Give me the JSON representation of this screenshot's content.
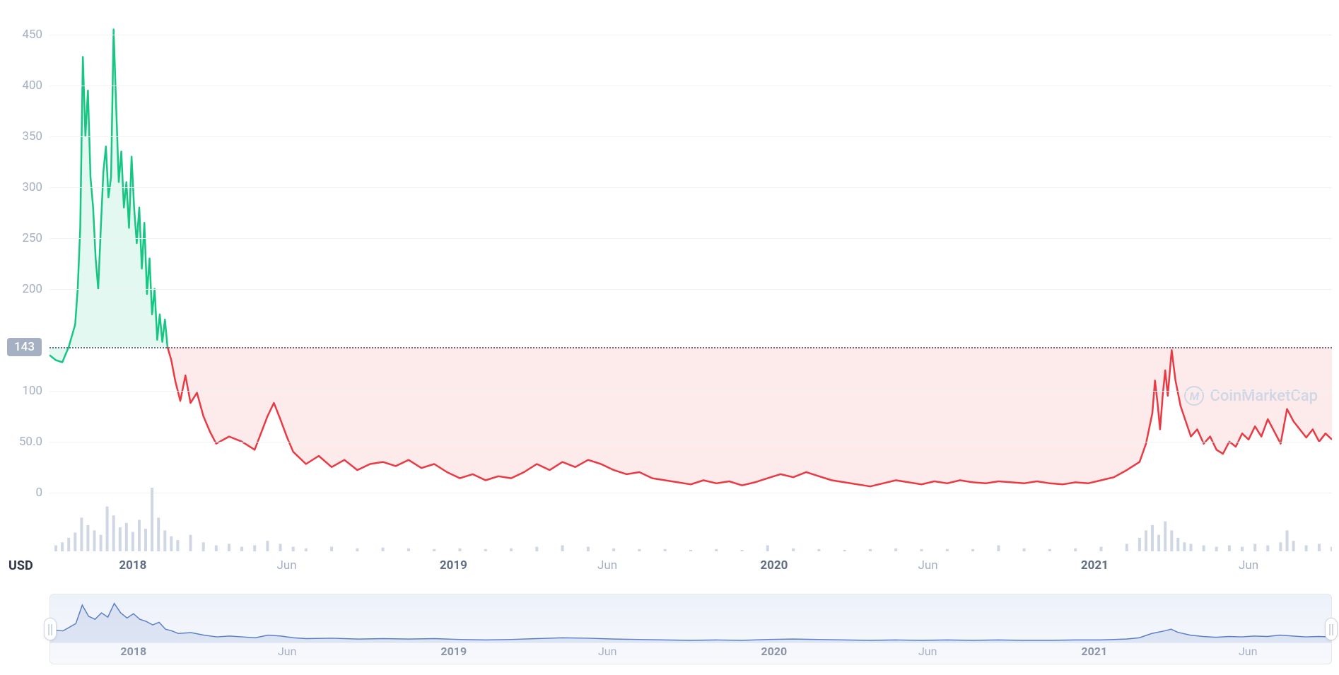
{
  "chart": {
    "type": "line",
    "currency_label": "USD",
    "y_axis": {
      "min": -30,
      "max": 470,
      "ticks": [
        0,
        50.0,
        100,
        143,
        200,
        250,
        300,
        350,
        400,
        450
      ],
      "tick_labels": [
        "0",
        "50.0",
        "100",
        "143",
        "200",
        "250",
        "300",
        "350",
        "400",
        "450"
      ],
      "color": "#a6b0c3",
      "fontsize": 17,
      "grid_color": "#eff2f5"
    },
    "reference": {
      "value": 143,
      "label": "143",
      "badge_bg": "#a6b0c3",
      "badge_text_color": "#ffffff",
      "line_color": "#616e85"
    },
    "x_axis": {
      "ticks": [
        {
          "pos": 0.065,
          "label": "2018",
          "bold": true
        },
        {
          "pos": 0.185,
          "label": "Jun",
          "bold": false
        },
        {
          "pos": 0.315,
          "label": "2019",
          "bold": true
        },
        {
          "pos": 0.435,
          "label": "Jun",
          "bold": false
        },
        {
          "pos": 0.565,
          "label": "2020",
          "bold": true
        },
        {
          "pos": 0.685,
          "label": "Jun",
          "bold": false
        },
        {
          "pos": 0.815,
          "label": "2021",
          "bold": true
        },
        {
          "pos": 0.935,
          "label": "Jun",
          "bold": false
        }
      ],
      "color": "#a6b0c3",
      "bold_color": "#616e85",
      "fontsize": 17
    },
    "series_green": {
      "color": "#16c784",
      "fill_color": "rgba(22,199,132,0.12)",
      "line_width": 2.5,
      "data": [
        [
          0.0,
          135
        ],
        [
          0.005,
          130
        ],
        [
          0.01,
          128
        ],
        [
          0.015,
          143
        ],
        [
          0.02,
          165
        ],
        [
          0.022,
          200
        ],
        [
          0.024,
          260
        ],
        [
          0.026,
          428
        ],
        [
          0.028,
          350
        ],
        [
          0.03,
          395
        ],
        [
          0.032,
          310
        ],
        [
          0.034,
          280
        ],
        [
          0.036,
          230
        ],
        [
          0.038,
          200
        ],
        [
          0.04,
          260
        ],
        [
          0.042,
          315
        ],
        [
          0.044,
          340
        ],
        [
          0.046,
          290
        ],
        [
          0.048,
          310
        ],
        [
          0.05,
          455
        ],
        [
          0.052,
          380
        ],
        [
          0.054,
          305
        ],
        [
          0.056,
          335
        ],
        [
          0.058,
          280
        ],
        [
          0.06,
          305
        ],
        [
          0.062,
          260
        ],
        [
          0.064,
          330
        ],
        [
          0.066,
          280
        ],
        [
          0.068,
          245
        ],
        [
          0.07,
          280
        ],
        [
          0.072,
          220
        ],
        [
          0.074,
          265
        ],
        [
          0.076,
          195
        ],
        [
          0.078,
          230
        ],
        [
          0.08,
          175
        ],
        [
          0.082,
          200
        ],
        [
          0.084,
          150
        ],
        [
          0.086,
          175
        ],
        [
          0.088,
          148
        ],
        [
          0.09,
          170
        ],
        [
          0.092,
          143
        ]
      ]
    },
    "series_red": {
      "color": "#ea3943",
      "fill_color": "rgba(234,57,67,0.10)",
      "line_width": 2.5,
      "data": [
        [
          0.092,
          143
        ],
        [
          0.095,
          130
        ],
        [
          0.098,
          110
        ],
        [
          0.102,
          90
        ],
        [
          0.106,
          115
        ],
        [
          0.11,
          88
        ],
        [
          0.115,
          98
        ],
        [
          0.12,
          75
        ],
        [
          0.125,
          60
        ],
        [
          0.13,
          48
        ],
        [
          0.14,
          55
        ],
        [
          0.15,
          50
        ],
        [
          0.16,
          42
        ],
        [
          0.17,
          75
        ],
        [
          0.175,
          88
        ],
        [
          0.18,
          72
        ],
        [
          0.185,
          55
        ],
        [
          0.19,
          40
        ],
        [
          0.2,
          28
        ],
        [
          0.21,
          36
        ],
        [
          0.22,
          25
        ],
        [
          0.23,
          32
        ],
        [
          0.24,
          22
        ],
        [
          0.25,
          28
        ],
        [
          0.26,
          30
        ],
        [
          0.27,
          26
        ],
        [
          0.28,
          32
        ],
        [
          0.29,
          24
        ],
        [
          0.3,
          28
        ],
        [
          0.31,
          20
        ],
        [
          0.32,
          14
        ],
        [
          0.33,
          18
        ],
        [
          0.34,
          12
        ],
        [
          0.35,
          16
        ],
        [
          0.36,
          14
        ],
        [
          0.37,
          20
        ],
        [
          0.38,
          28
        ],
        [
          0.39,
          22
        ],
        [
          0.4,
          30
        ],
        [
          0.41,
          25
        ],
        [
          0.42,
          32
        ],
        [
          0.43,
          28
        ],
        [
          0.44,
          22
        ],
        [
          0.45,
          18
        ],
        [
          0.46,
          20
        ],
        [
          0.47,
          14
        ],
        [
          0.48,
          12
        ],
        [
          0.49,
          10
        ],
        [
          0.5,
          8
        ],
        [
          0.51,
          12
        ],
        [
          0.52,
          9
        ],
        [
          0.53,
          11
        ],
        [
          0.54,
          7
        ],
        [
          0.55,
          10
        ],
        [
          0.56,
          14
        ],
        [
          0.57,
          18
        ],
        [
          0.58,
          15
        ],
        [
          0.59,
          20
        ],
        [
          0.6,
          16
        ],
        [
          0.61,
          12
        ],
        [
          0.62,
          10
        ],
        [
          0.63,
          8
        ],
        [
          0.64,
          6
        ],
        [
          0.65,
          9
        ],
        [
          0.66,
          12
        ],
        [
          0.67,
          10
        ],
        [
          0.68,
          8
        ],
        [
          0.69,
          11
        ],
        [
          0.7,
          9
        ],
        [
          0.71,
          12
        ],
        [
          0.72,
          10
        ],
        [
          0.73,
          9
        ],
        [
          0.74,
          11
        ],
        [
          0.75,
          10
        ],
        [
          0.76,
          9
        ],
        [
          0.77,
          11
        ],
        [
          0.78,
          9
        ],
        [
          0.79,
          8
        ],
        [
          0.8,
          10
        ],
        [
          0.81,
          9
        ],
        [
          0.82,
          12
        ],
        [
          0.83,
          15
        ],
        [
          0.84,
          22
        ],
        [
          0.85,
          30
        ],
        [
          0.855,
          48
        ],
        [
          0.86,
          78
        ],
        [
          0.862,
          110
        ],
        [
          0.864,
          88
        ],
        [
          0.866,
          62
        ],
        [
          0.868,
          95
        ],
        [
          0.87,
          120
        ],
        [
          0.872,
          95
        ],
        [
          0.875,
          140
        ],
        [
          0.878,
          110
        ],
        [
          0.882,
          85
        ],
        [
          0.886,
          70
        ],
        [
          0.89,
          55
        ],
        [
          0.895,
          62
        ],
        [
          0.9,
          48
        ],
        [
          0.905,
          55
        ],
        [
          0.91,
          42
        ],
        [
          0.915,
          38
        ],
        [
          0.92,
          50
        ],
        [
          0.925,
          45
        ],
        [
          0.93,
          58
        ],
        [
          0.935,
          52
        ],
        [
          0.94,
          65
        ],
        [
          0.945,
          55
        ],
        [
          0.95,
          72
        ],
        [
          0.955,
          60
        ],
        [
          0.96,
          48
        ],
        [
          0.965,
          82
        ],
        [
          0.97,
          70
        ],
        [
          0.975,
          62
        ],
        [
          0.98,
          54
        ],
        [
          0.985,
          62
        ],
        [
          0.99,
          50
        ],
        [
          0.995,
          58
        ],
        [
          1.0,
          52
        ]
      ]
    },
    "volume": {
      "color": "#cfd6e4",
      "max_height": 85,
      "data": [
        [
          0.005,
          8
        ],
        [
          0.01,
          12
        ],
        [
          0.015,
          18
        ],
        [
          0.02,
          25
        ],
        [
          0.025,
          45
        ],
        [
          0.03,
          35
        ],
        [
          0.035,
          28
        ],
        [
          0.04,
          22
        ],
        [
          0.045,
          60
        ],
        [
          0.05,
          48
        ],
        [
          0.055,
          32
        ],
        [
          0.06,
          38
        ],
        [
          0.065,
          26
        ],
        [
          0.07,
          42
        ],
        [
          0.075,
          30
        ],
        [
          0.08,
          85
        ],
        [
          0.085,
          45
        ],
        [
          0.09,
          28
        ],
        [
          0.095,
          20
        ],
        [
          0.1,
          15
        ],
        [
          0.11,
          22
        ],
        [
          0.12,
          12
        ],
        [
          0.13,
          8
        ],
        [
          0.14,
          10
        ],
        [
          0.15,
          6
        ],
        [
          0.16,
          8
        ],
        [
          0.17,
          14
        ],
        [
          0.18,
          10
        ],
        [
          0.19,
          6
        ],
        [
          0.2,
          4
        ],
        [
          0.22,
          6
        ],
        [
          0.24,
          4
        ],
        [
          0.26,
          5
        ],
        [
          0.28,
          4
        ],
        [
          0.3,
          3
        ],
        [
          0.32,
          4
        ],
        [
          0.34,
          3
        ],
        [
          0.36,
          4
        ],
        [
          0.38,
          6
        ],
        [
          0.4,
          8
        ],
        [
          0.42,
          6
        ],
        [
          0.44,
          4
        ],
        [
          0.46,
          3
        ],
        [
          0.48,
          3
        ],
        [
          0.5,
          2
        ],
        [
          0.52,
          3
        ],
        [
          0.54,
          2
        ],
        [
          0.56,
          8
        ],
        [
          0.58,
          4
        ],
        [
          0.6,
          3
        ],
        [
          0.62,
          2
        ],
        [
          0.64,
          3
        ],
        [
          0.66,
          4
        ],
        [
          0.68,
          3
        ],
        [
          0.7,
          3
        ],
        [
          0.72,
          3
        ],
        [
          0.74,
          8
        ],
        [
          0.76,
          4
        ],
        [
          0.78,
          3
        ],
        [
          0.8,
          4
        ],
        [
          0.82,
          6
        ],
        [
          0.84,
          10
        ],
        [
          0.85,
          18
        ],
        [
          0.855,
          28
        ],
        [
          0.86,
          35
        ],
        [
          0.865,
          22
        ],
        [
          0.87,
          40
        ],
        [
          0.875,
          28
        ],
        [
          0.88,
          18
        ],
        [
          0.885,
          12
        ],
        [
          0.89,
          10
        ],
        [
          0.9,
          8
        ],
        [
          0.91,
          6
        ],
        [
          0.92,
          8
        ],
        [
          0.93,
          6
        ],
        [
          0.94,
          10
        ],
        [
          0.95,
          8
        ],
        [
          0.96,
          12
        ],
        [
          0.965,
          28
        ],
        [
          0.97,
          14
        ],
        [
          0.98,
          8
        ],
        [
          0.99,
          10
        ],
        [
          1.0,
          6
        ]
      ]
    },
    "watermark": {
      "text": "CoinMarketCap",
      "icon_letter": "M",
      "color": "#cfd6e4",
      "y_value": 95
    }
  },
  "range_selector": {
    "line_color": "#5b7fc7",
    "line_width": 1.5,
    "background": "rgba(203,215,238,0.25)",
    "border_color": "#e4e7eb",
    "x_ticks": [
      {
        "pos": 0.065,
        "label": "2018",
        "bold": true
      },
      {
        "pos": 0.185,
        "label": "Jun",
        "bold": false
      },
      {
        "pos": 0.315,
        "label": "2019",
        "bold": true
      },
      {
        "pos": 0.435,
        "label": "Jun",
        "bold": false
      },
      {
        "pos": 0.565,
        "label": "2020",
        "bold": true
      },
      {
        "pos": 0.685,
        "label": "Jun",
        "bold": false
      },
      {
        "pos": 0.815,
        "label": "2021",
        "bold": true
      },
      {
        "pos": 0.935,
        "label": "Jun",
        "bold": false
      }
    ],
    "data": [
      [
        0.0,
        30
      ],
      [
        0.01,
        28
      ],
      [
        0.02,
        45
      ],
      [
        0.025,
        88
      ],
      [
        0.03,
        62
      ],
      [
        0.035,
        55
      ],
      [
        0.04,
        70
      ],
      [
        0.045,
        60
      ],
      [
        0.05,
        92
      ],
      [
        0.055,
        70
      ],
      [
        0.06,
        58
      ],
      [
        0.065,
        68
      ],
      [
        0.07,
        55
      ],
      [
        0.075,
        50
      ],
      [
        0.08,
        42
      ],
      [
        0.085,
        48
      ],
      [
        0.09,
        32
      ],
      [
        0.095,
        28
      ],
      [
        0.1,
        22
      ],
      [
        0.11,
        24
      ],
      [
        0.12,
        18
      ],
      [
        0.13,
        14
      ],
      [
        0.14,
        16
      ],
      [
        0.15,
        14
      ],
      [
        0.16,
        12
      ],
      [
        0.17,
        18
      ],
      [
        0.18,
        16
      ],
      [
        0.19,
        12
      ],
      [
        0.2,
        10
      ],
      [
        0.22,
        11
      ],
      [
        0.24,
        9
      ],
      [
        0.26,
        10
      ],
      [
        0.28,
        9
      ],
      [
        0.3,
        10
      ],
      [
        0.32,
        8
      ],
      [
        0.34,
        7
      ],
      [
        0.36,
        8
      ],
      [
        0.38,
        10
      ],
      [
        0.4,
        12
      ],
      [
        0.42,
        11
      ],
      [
        0.44,
        9
      ],
      [
        0.46,
        8
      ],
      [
        0.48,
        7
      ],
      [
        0.5,
        6
      ],
      [
        0.52,
        7
      ],
      [
        0.54,
        6
      ],
      [
        0.56,
        8
      ],
      [
        0.58,
        9
      ],
      [
        0.6,
        8
      ],
      [
        0.62,
        7
      ],
      [
        0.64,
        6
      ],
      [
        0.66,
        7
      ],
      [
        0.68,
        6
      ],
      [
        0.7,
        7
      ],
      [
        0.72,
        6
      ],
      [
        0.74,
        7
      ],
      [
        0.76,
        6
      ],
      [
        0.78,
        6
      ],
      [
        0.8,
        7
      ],
      [
        0.82,
        7
      ],
      [
        0.84,
        9
      ],
      [
        0.85,
        12
      ],
      [
        0.86,
        22
      ],
      [
        0.87,
        28
      ],
      [
        0.875,
        32
      ],
      [
        0.88,
        25
      ],
      [
        0.89,
        18
      ],
      [
        0.9,
        15
      ],
      [
        0.91,
        13
      ],
      [
        0.92,
        15
      ],
      [
        0.93,
        14
      ],
      [
        0.94,
        16
      ],
      [
        0.95,
        15
      ],
      [
        0.96,
        18
      ],
      [
        0.97,
        16
      ],
      [
        0.98,
        14
      ],
      [
        0.99,
        15
      ],
      [
        1.0,
        14
      ]
    ],
    "y_max": 100,
    "handle_left_pos": 0.0,
    "handle_right_pos": 1.0
  }
}
